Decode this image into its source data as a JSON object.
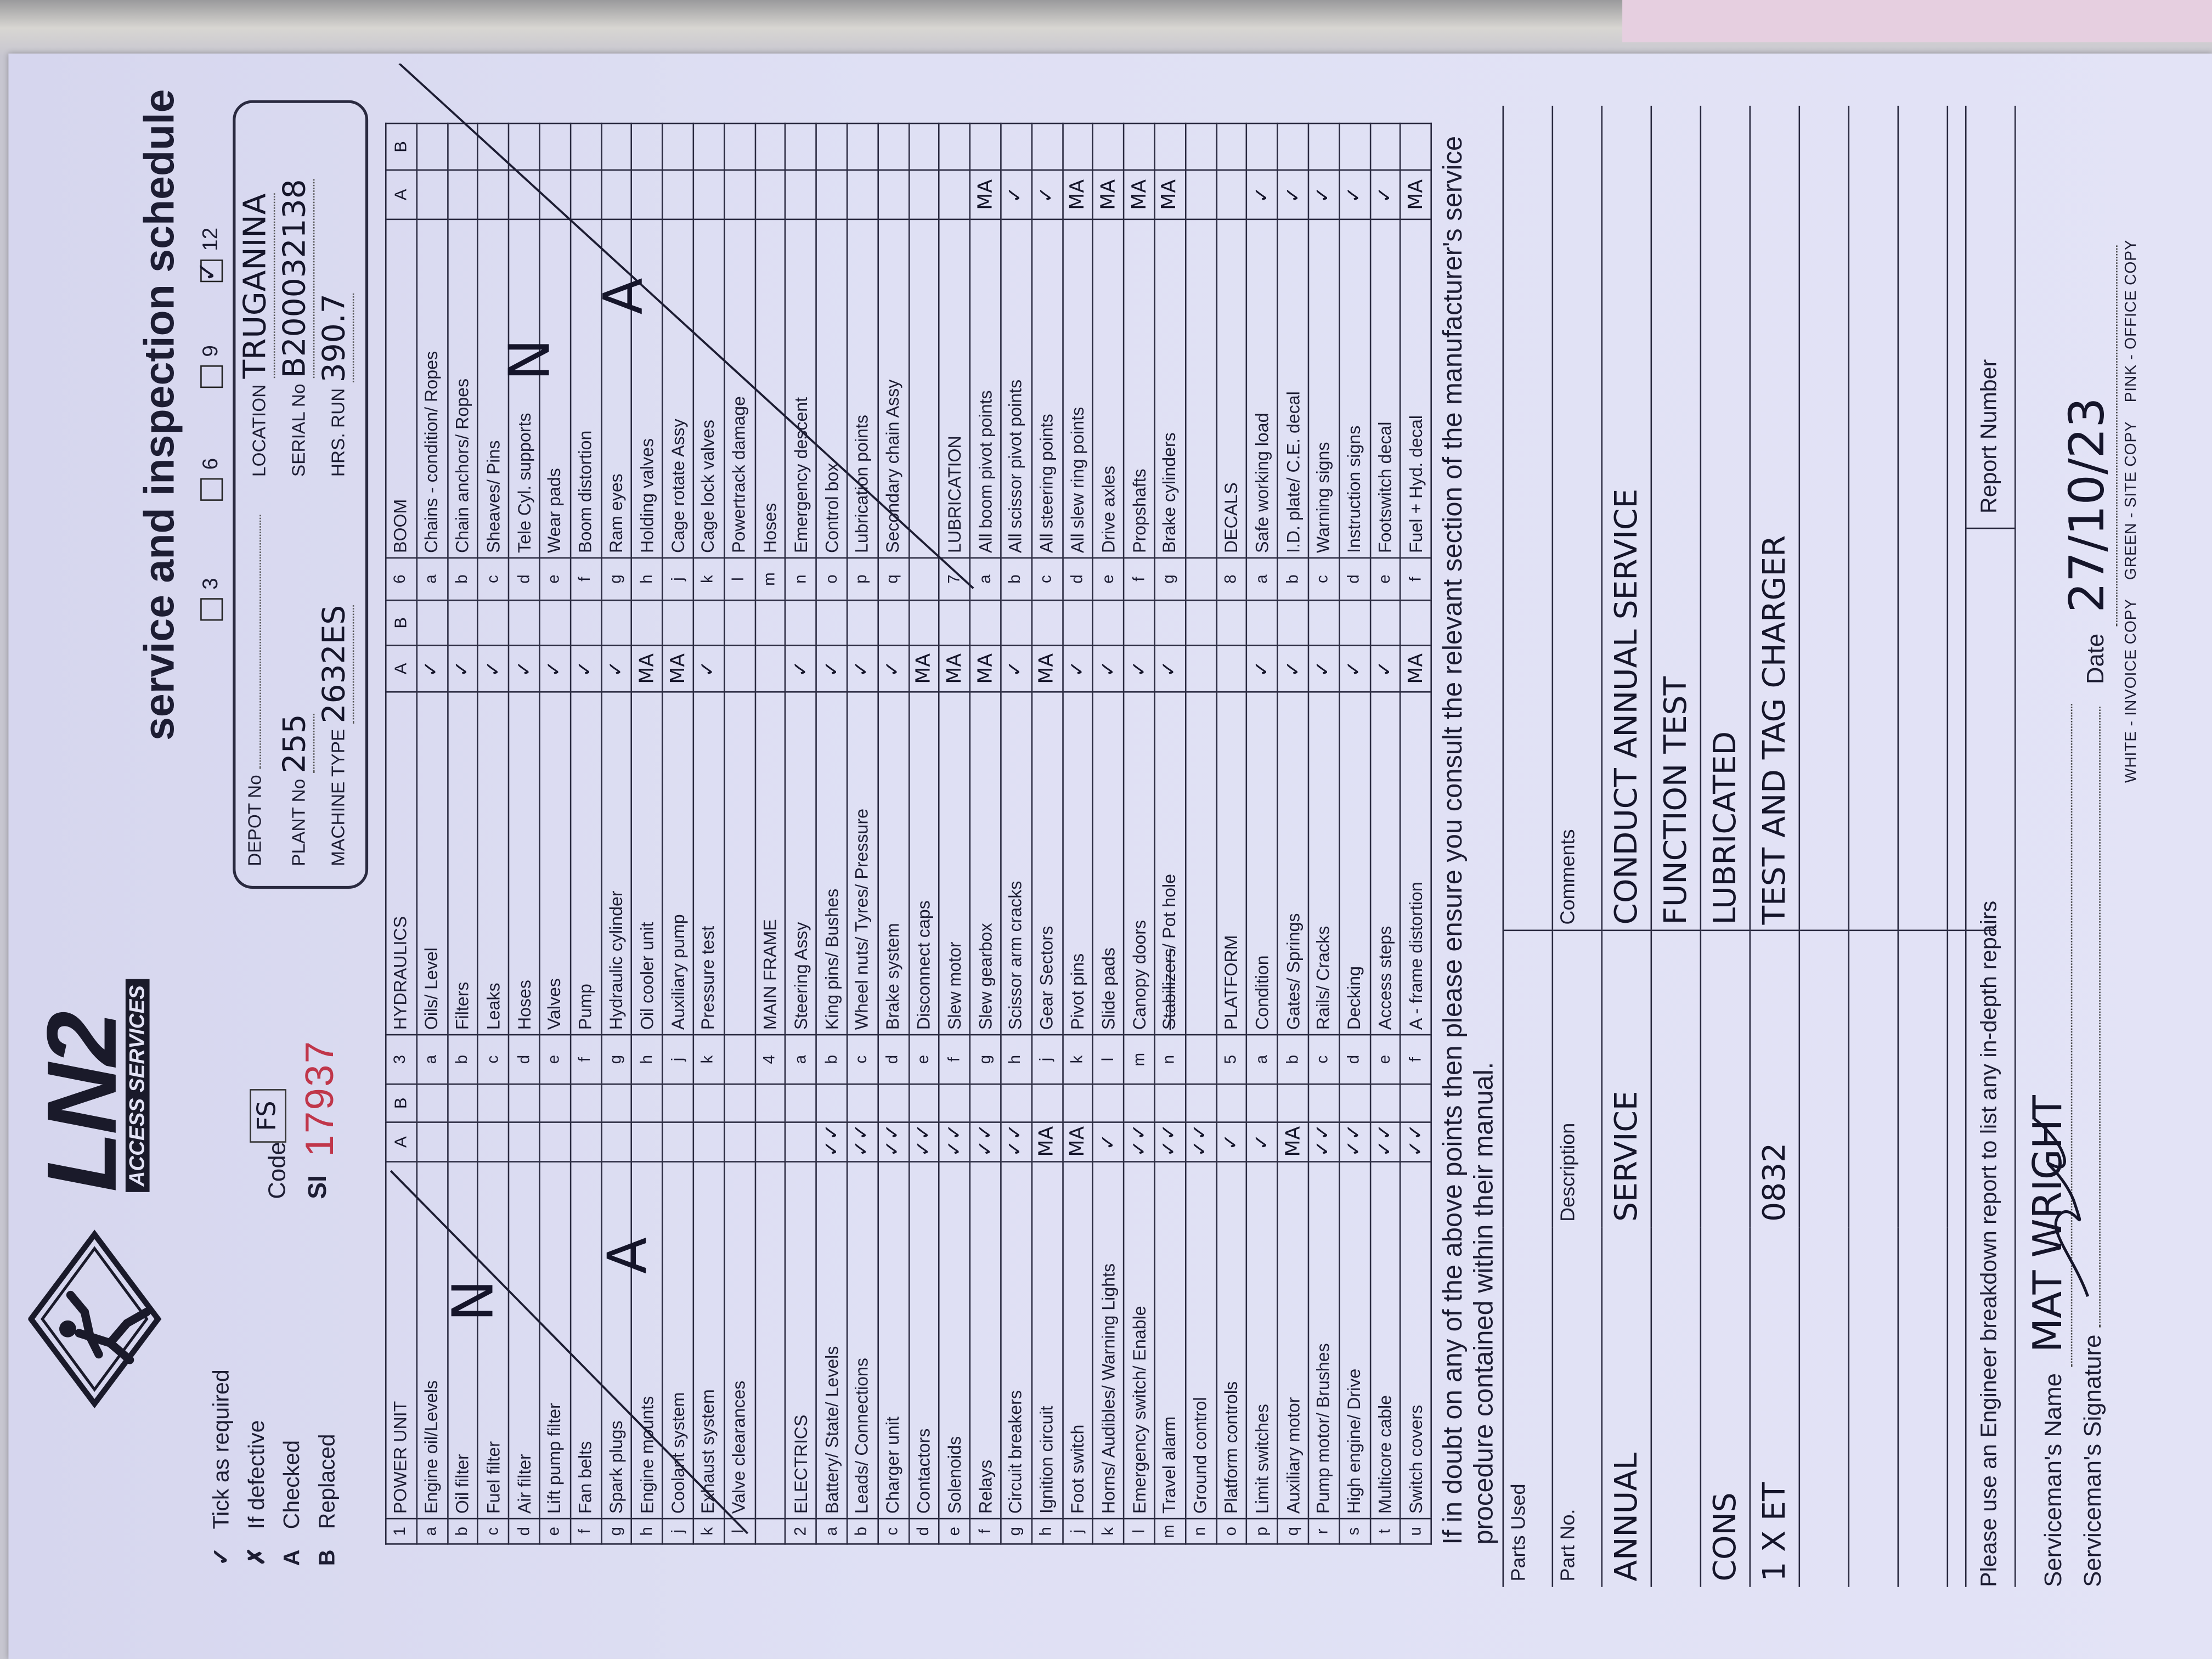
{
  "header": {
    "title": "service and inspection schedule",
    "logo_text": "LN2",
    "logo_subtext": "ACCESS SERVICES",
    "intervals": [
      {
        "label": "3",
        "checked": false
      },
      {
        "label": "6",
        "checked": false
      },
      {
        "label": "9",
        "checked": false
      },
      {
        "label": "12",
        "checked": true
      }
    ],
    "legend": [
      {
        "symbol": "✓",
        "text": "Tick as required"
      },
      {
        "symbol": "✗",
        "text": "If defective"
      },
      {
        "symbol": "A",
        "text": "Checked"
      },
      {
        "symbol": "B",
        "text": "Replaced"
      }
    ],
    "code_label": "Code",
    "code_value": "FS",
    "si_label": "SI",
    "si_number": "17937"
  },
  "info": {
    "depot_label": "DEPOT No",
    "depot_value": "",
    "plant_label": "PLANT No",
    "plant_value": "255",
    "machine_label": "MACHINE TYPE",
    "machine_value": "2632ES",
    "location_label": "LOCATION",
    "location_value": "TRUGANINA",
    "serial_label": "SERIAL No",
    "serial_value": "B200032138",
    "hrs_label": "HRS. RUN",
    "hrs_value": "390.7"
  },
  "checklist": {
    "groups": [
      [
        [
          "1",
          "POWER UNIT",
          "A",
          "B"
        ],
        [
          "a",
          "Engine oil/Levels",
          "",
          ""
        ],
        [
          "b",
          "Oil filter",
          "",
          ""
        ],
        [
          "c",
          "Fuel filter",
          "",
          ""
        ],
        [
          "d",
          "Air filter",
          "",
          ""
        ],
        [
          "e",
          "Lift pump filter",
          "",
          ""
        ],
        [
          "f",
          "Fan belts",
          "",
          ""
        ],
        [
          "g",
          "Spark plugs",
          "",
          ""
        ],
        [
          "h",
          "Engine mounts",
          "",
          ""
        ],
        [
          "j",
          "Coolant system",
          "",
          ""
        ],
        [
          "k",
          "Exhaust system",
          "",
          ""
        ],
        [
          "l",
          "Valve clearances",
          "",
          ""
        ],
        [
          "",
          "",
          "",
          ""
        ],
        [
          "2",
          "ELECTRICS",
          "",
          ""
        ],
        [
          "a",
          "Battery/ State/ Levels",
          "✓✓",
          ""
        ],
        [
          "b",
          "Leads/ Connections",
          "✓✓",
          ""
        ],
        [
          "c",
          "Charger unit",
          "✓✓",
          ""
        ],
        [
          "d",
          "Contactors",
          "✓✓",
          ""
        ],
        [
          "e",
          "Solenoids",
          "✓✓",
          ""
        ],
        [
          "f",
          "Relays",
          "✓✓",
          ""
        ],
        [
          "g",
          "Circuit breakers",
          "✓✓",
          ""
        ],
        [
          "h",
          "Ignition circuit",
          "MA",
          ""
        ],
        [
          "j",
          "Foot switch",
          "MA",
          ""
        ],
        [
          "k",
          "Horns/ Audibles/ Warning Lights",
          "✓",
          ""
        ],
        [
          "l",
          "Emergency switch/ Enable",
          "✓✓",
          ""
        ],
        [
          "m",
          "Travel alarm",
          "✓✓",
          ""
        ],
        [
          "n",
          "Ground control",
          "✓✓",
          ""
        ],
        [
          "o",
          "Platform controls",
          "✓",
          ""
        ],
        [
          "p",
          "Limit switches",
          "✓",
          ""
        ],
        [
          "q",
          "Auxiliary motor",
          "MA",
          ""
        ],
        [
          "r",
          "Pump motor/ Brushes",
          "✓✓",
          ""
        ],
        [
          "s",
          "High engine/ Drive",
          "✓✓",
          ""
        ],
        [
          "t",
          "Multicore cable",
          "✓✓",
          ""
        ],
        [
          "u",
          "Switch covers",
          "✓✓",
          ""
        ]
      ],
      [
        [
          "3",
          "HYDRAULICS",
          "A",
          "B"
        ],
        [
          "a",
          "Oils/ Level",
          "✓",
          ""
        ],
        [
          "b",
          "Filters",
          "✓",
          ""
        ],
        [
          "c",
          "Leaks",
          "✓",
          ""
        ],
        [
          "d",
          "Hoses",
          "✓",
          ""
        ],
        [
          "e",
          "Valves",
          "✓",
          ""
        ],
        [
          "f",
          "Pump",
          "✓",
          ""
        ],
        [
          "g",
          "Hydraulic cylinder",
          "✓",
          ""
        ],
        [
          "h",
          "Oil cooler unit",
          "MA",
          ""
        ],
        [
          "j",
          "Auxiliary pump",
          "MA",
          ""
        ],
        [
          "k",
          "Pressure test",
          "✓",
          ""
        ],
        [
          "",
          "",
          "",
          ""
        ],
        [
          "4",
          "MAIN FRAME",
          "",
          ""
        ],
        [
          "a",
          "Steering Assy",
          "✓",
          ""
        ],
        [
          "b",
          "King pins/ Bushes",
          "✓",
          ""
        ],
        [
          "c",
          "Wheel nuts/ Tyres/ Pressure",
          "✓",
          ""
        ],
        [
          "d",
          "Brake system",
          "✓",
          ""
        ],
        [
          "e",
          "Disconnect caps",
          "MA",
          ""
        ],
        [
          "f",
          "Slew motor",
          "MA",
          ""
        ],
        [
          "g",
          "Slew gearbox",
          "MA",
          ""
        ],
        [
          "h",
          "Scissor arm cracks",
          "✓",
          ""
        ],
        [
          "j",
          "Gear Sectors",
          "MA",
          ""
        ],
        [
          "k",
          "Pivot pins",
          "✓",
          ""
        ],
        [
          "l",
          "Slide pads",
          "✓",
          ""
        ],
        [
          "m",
          "Canopy doors",
          "✓",
          ""
        ],
        [
          "n",
          "Stabilizers/ Pot hole",
          "✓",
          ""
        ],
        [
          "",
          "",
          "",
          ""
        ],
        [
          "5",
          "PLATFORM",
          "",
          ""
        ],
        [
          "a",
          "Condition",
          "✓",
          ""
        ],
        [
          "b",
          "Gates/ Springs",
          "✓",
          ""
        ],
        [
          "c",
          "Rails/ Cracks",
          "✓",
          ""
        ],
        [
          "d",
          "Decking",
          "✓",
          ""
        ],
        [
          "e",
          "Access steps",
          "✓",
          ""
        ],
        [
          "f",
          "A - frame distortion",
          "MA",
          ""
        ]
      ],
      [
        [
          "6",
          "BOOM",
          "A",
          "B"
        ],
        [
          "a",
          "Chains - condition/ Ropes",
          "",
          ""
        ],
        [
          "b",
          "Chain anchors/ Ropes",
          "",
          ""
        ],
        [
          "c",
          "Sheaves/ Pins",
          "",
          ""
        ],
        [
          "d",
          "Tele Cyl. supports",
          "",
          ""
        ],
        [
          "e",
          "Wear pads",
          "",
          ""
        ],
        [
          "f",
          "Boom distortion",
          "",
          ""
        ],
        [
          "g",
          "Ram eyes",
          "",
          ""
        ],
        [
          "h",
          "Holding valves",
          "",
          ""
        ],
        [
          "j",
          "Cage rotate Assy",
          "",
          ""
        ],
        [
          "k",
          "Cage lock valves",
          "",
          ""
        ],
        [
          "l",
          "Powertrack damage",
          "",
          ""
        ],
        [
          "m",
          "Hoses",
          "",
          ""
        ],
        [
          "n",
          "Emergency descent",
          "",
          ""
        ],
        [
          "o",
          "Control box",
          "",
          ""
        ],
        [
          "p",
          "Lubrication points",
          "",
          ""
        ],
        [
          "q",
          "Secondary chain Assy",
          "",
          ""
        ],
        [
          "",
          "",
          "",
          ""
        ],
        [
          "7",
          "LUBRICATION",
          "",
          ""
        ],
        [
          "a",
          "All boom pivot points",
          "MA",
          ""
        ],
        [
          "b",
          "All scissor pivot points",
          "✓",
          ""
        ],
        [
          "c",
          "All steering points",
          "✓",
          ""
        ],
        [
          "d",
          "All slew ring points",
          "MA",
          ""
        ],
        [
          "e",
          "Drive axles",
          "MA",
          ""
        ],
        [
          "f",
          "Propshafts",
          "MA",
          ""
        ],
        [
          "g",
          "Brake cylinders",
          "MA",
          ""
        ],
        [
          "",
          "",
          "",
          ""
        ],
        [
          "8",
          "DECALS",
          "",
          ""
        ],
        [
          "a",
          "Safe working load",
          "✓",
          ""
        ],
        [
          "b",
          "I.D. plate/ C.E. decal",
          "✓",
          ""
        ],
        [
          "c",
          "Warning signs",
          "✓",
          ""
        ],
        [
          "d",
          "Instruction signs",
          "✓",
          ""
        ],
        [
          "e",
          "Footswitch decal",
          "✓",
          ""
        ],
        [
          "f",
          "Fuel + Hyd. decal",
          "MA",
          ""
        ]
      ]
    ],
    "not_applicable_marks": [
      "N",
      "A"
    ]
  },
  "notice": "If in doubt on any of the above points then please ensure you consult the relevant section of the manufacturer's service procedure contained within their manual.",
  "parts": {
    "title": "Parts Used",
    "part_no_label": "Part No.",
    "description_label": "Description",
    "comments_label": "Comments",
    "rows": [
      {
        "part_no": "ANNUAL",
        "description": "SERVICE",
        "comments": "CONDUCT ANNUAL SERVICE"
      },
      {
        "part_no": "",
        "description": "",
        "comments": "FUNCTION TEST"
      },
      {
        "part_no": "CONS",
        "description": "",
        "comments": "LUBRICATED"
      },
      {
        "part_no": "1 X ET",
        "description": "0832",
        "comments": "TEST AND TAG CHARGER"
      },
      {
        "part_no": "",
        "description": "",
        "comments": ""
      },
      {
        "part_no": "",
        "description": "",
        "comments": ""
      },
      {
        "part_no": "",
        "description": "",
        "comments": ""
      },
      {
        "part_no": "",
        "description": "",
        "comments": ""
      }
    ]
  },
  "footer": {
    "breakdown_note": "Please use an Engineer breakdown report to list any in-depth repairs",
    "report_number_label": "Report Number",
    "name_label": "Serviceman's Name",
    "name_value": "MAT WRIGHT",
    "signature_label": "Serviceman's Signature",
    "date_label": "Date",
    "date_value": "27/10/23",
    "copies": "WHITE - INVOICE COPY    GREEN - SITE COPY    PINK - OFFICE COPY"
  },
  "colors": {
    "paper": "#dfe0f4",
    "ink": "#1d1d33",
    "si_number": "#c0364a"
  }
}
